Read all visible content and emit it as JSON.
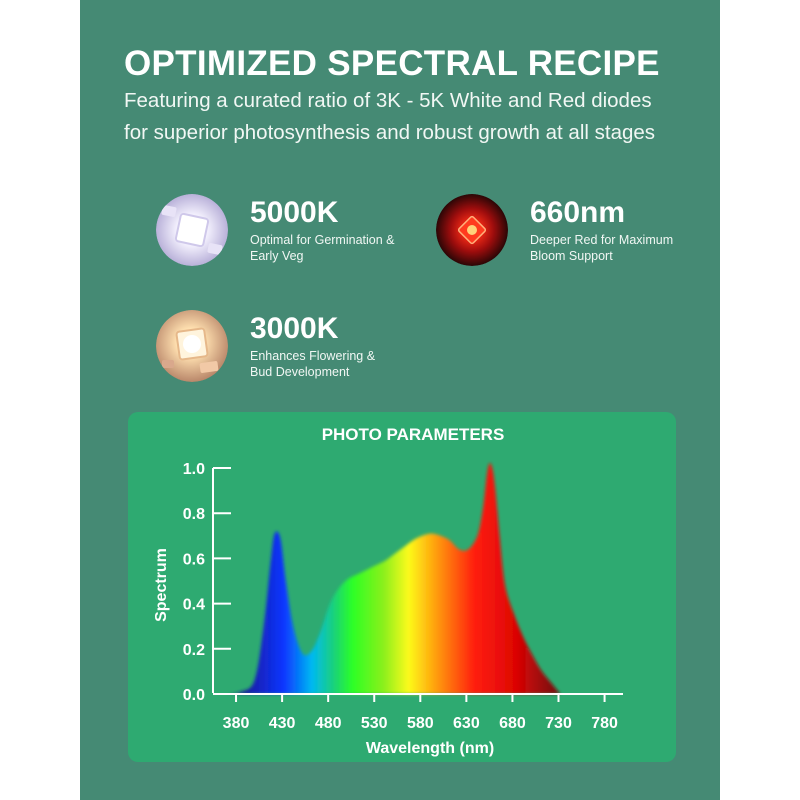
{
  "header": {
    "title": "OPTIMIZED SPECTRAL RECIPE",
    "subtitle_line1": "Featuring a curated ratio of 3K - 5K White and Red diodes",
    "subtitle_line2": "for superior photosynthesis and robust growth at all stages"
  },
  "features": [
    {
      "value": "5000K",
      "desc_line1": "Optimal for Germination &",
      "desc_line2": "Early Veg",
      "icon": "white-led-chip-icon",
      "color": "#e6e2f6"
    },
    {
      "value": "660nm",
      "desc_line1": "Deeper Red for Maximum",
      "desc_line2": "Bloom Support",
      "icon": "red-led-chip-icon",
      "color": "#d21a1a"
    },
    {
      "value": "3000K",
      "desc_line1": "Enhances Flowering &",
      "desc_line2": "Bud Development",
      "icon": "warm-white-led-chip-icon",
      "color": "#f4d7b3"
    }
  ],
  "chart_data": {
    "type": "area",
    "title": "PHOTO PARAMETERS",
    "xlabel": "Wavelength (nm)",
    "ylabel": "Spectrum",
    "xlim": [
      355,
      800
    ],
    "ylim": [
      0,
      1.0
    ],
    "x_ticks": [
      380,
      430,
      480,
      530,
      580,
      630,
      680,
      730,
      780
    ],
    "y_ticks": [
      0.0,
      0.2,
      0.4,
      0.6,
      0.8,
      1.0
    ],
    "x_tick_labels": [
      "380",
      "430",
      "480",
      "530",
      "580",
      "630",
      "680",
      "730",
      "780"
    ],
    "y_tick_labels": [
      "0.0",
      "0.2",
      "0.4",
      "0.6",
      "0.8",
      "1.0"
    ],
    "grid": false,
    "fill": "visible-spectrum gradient",
    "series": [
      {
        "x": [
          370,
          385,
          400,
          410,
          418,
          422,
          428,
          434,
          442,
          452,
          462,
          472,
          482,
          492,
          502,
          512,
          522,
          532,
          542,
          552,
          562,
          572,
          582,
          592,
          602,
          612,
          622,
          632,
          642,
          648,
          652,
          655,
          658,
          661,
          666,
          672,
          682,
          692,
          702,
          712,
          722,
          732
        ],
        "values": [
          0.0,
          0.01,
          0.06,
          0.3,
          0.6,
          0.71,
          0.69,
          0.5,
          0.3,
          0.18,
          0.19,
          0.28,
          0.4,
          0.47,
          0.51,
          0.53,
          0.55,
          0.57,
          0.59,
          0.62,
          0.65,
          0.68,
          0.7,
          0.71,
          0.7,
          0.68,
          0.64,
          0.64,
          0.7,
          0.82,
          0.96,
          1.02,
          1.0,
          0.92,
          0.7,
          0.48,
          0.35,
          0.25,
          0.17,
          0.1,
          0.05,
          0.0
        ]
      }
    ]
  }
}
